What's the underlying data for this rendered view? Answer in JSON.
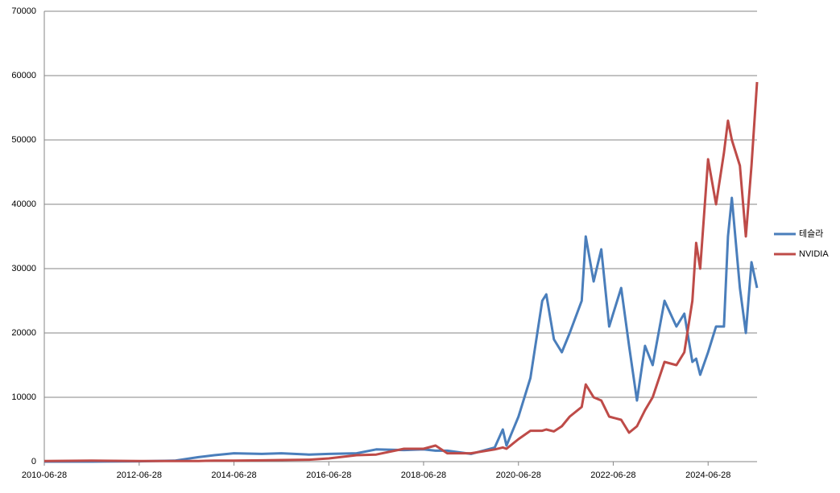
{
  "chart_data": {
    "type": "line",
    "x": [
      "2010-06-28",
      "2011-06-28",
      "2012-06-28",
      "2013-03-28",
      "2013-09-28",
      "2014-01-28",
      "2014-06-28",
      "2015-01-28",
      "2015-06-28",
      "2016-01-28",
      "2016-06-28",
      "2017-01-28",
      "2017-06-28",
      "2018-01-28",
      "2018-06-28",
      "2018-09-28",
      "2018-12-28",
      "2019-06-28",
      "2019-12-28",
      "2020-02-28",
      "2020-03-28",
      "2020-06-28",
      "2020-09-28",
      "2020-12-28",
      "2021-01-28",
      "2021-03-28",
      "2021-05-28",
      "2021-07-28",
      "2021-10-28",
      "2021-11-28",
      "2022-01-28",
      "2022-03-28",
      "2022-05-28",
      "2022-08-28",
      "2022-10-28",
      "2022-12-28",
      "2023-02-28",
      "2023-04-28",
      "2023-07-28",
      "2023-10-28",
      "2023-12-28",
      "2024-02-28",
      "2024-03-28",
      "2024-04-28",
      "2024-06-28",
      "2024-08-28",
      "2024-10-28",
      "2024-11-28",
      "2024-12-28",
      "2025-02-28",
      "2025-04-15",
      "2025-05-28",
      "2025-07-10"
    ],
    "series": [
      {
        "name": "테슬라",
        "color": "#4a7ebb",
        "values": [
          0,
          0,
          50,
          150,
          700,
          1000,
          1300,
          1200,
          1300,
          1100,
          1200,
          1300,
          1900,
          1800,
          1900,
          1700,
          1700,
          1200,
          2200,
          5000,
          2500,
          7000,
          13000,
          25000,
          26000,
          19000,
          17000,
          20000,
          25000,
          35000,
          28000,
          33000,
          21000,
          27000,
          18000,
          9500,
          18000,
          15000,
          25000,
          21000,
          23000,
          15500,
          16000,
          13500,
          17000,
          21000,
          21000,
          35000,
          41000,
          27000,
          20000,
          31000,
          27000
        ]
      },
      {
        "name": "NVIDIA",
        "color": "#be4b48",
        "values": [
          100,
          150,
          100,
          100,
          100,
          150,
          150,
          200,
          250,
          300,
          500,
          1000,
          1100,
          2000,
          2000,
          2500,
          1300,
          1300,
          1900,
          2200,
          2000,
          3500,
          4800,
          4800,
          5000,
          4700,
          5500,
          7000,
          8500,
          12000,
          10000,
          9500,
          7000,
          6500,
          4500,
          5500,
          8000,
          10000,
          15500,
          15000,
          17000,
          25000,
          34000,
          30000,
          47000,
          40000,
          48000,
          53000,
          50000,
          46000,
          35000,
          46000,
          59000
        ]
      }
    ],
    "xlim": [
      "2010-06-28",
      "2025-07-10"
    ],
    "xticks": [
      "2010-06-28",
      "2012-06-28",
      "2014-06-28",
      "2016-06-28",
      "2018-06-28",
      "2020-06-28",
      "2022-06-28",
      "2024-06-28"
    ],
    "ylim": [
      0,
      70000
    ],
    "yticks": [
      0,
      10000,
      20000,
      30000,
      40000,
      50000,
      60000,
      70000
    ],
    "grid": true,
    "legend": "right"
  }
}
